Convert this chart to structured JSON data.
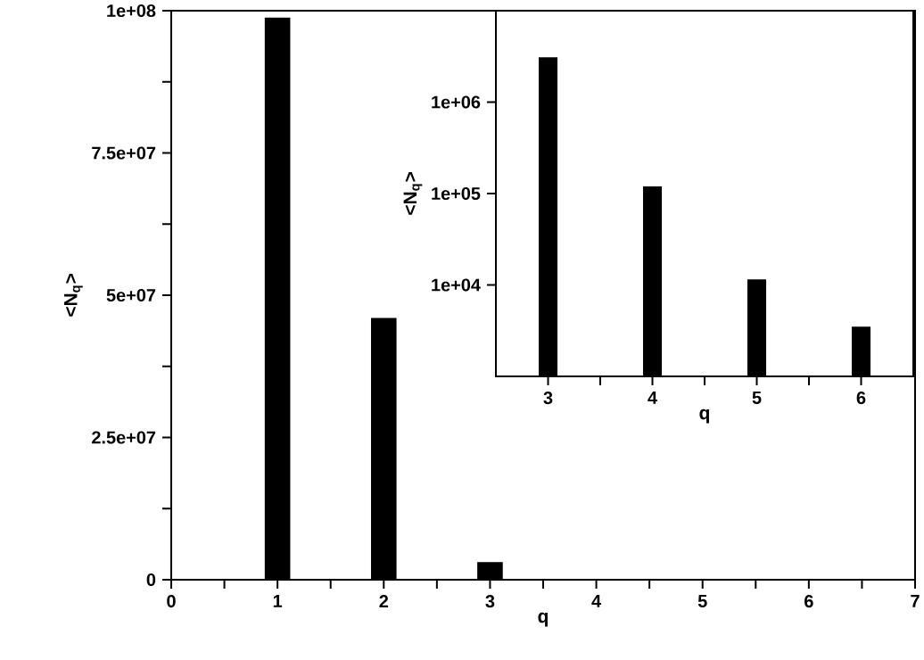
{
  "chart_data": [
    {
      "type": "bar",
      "xlabel": "q",
      "ylabel": "<N$_{q}$>",
      "color": "#000000",
      "x": [
        1,
        2,
        3,
        4,
        5,
        6
      ],
      "values": [
        98800000,
        46000000,
        3100000,
        120000,
        11500,
        3500
      ],
      "xlim": [
        0,
        7
      ],
      "ylim": [
        0,
        100000000
      ],
      "xticks": [
        0,
        {
          "value": 0.5,
          "label": null
        },
        1,
        {
          "value": 1.5,
          "label": null
        },
        2,
        {
          "value": 2.5,
          "label": null
        },
        3,
        {
          "value": 3.5,
          "label": null
        },
        4,
        {
          "value": 4.5,
          "label": null
        },
        5,
        {
          "value": 5.5,
          "label": null
        },
        6,
        {
          "value": 6.5,
          "label": null
        },
        7
      ],
      "yticks": [
        0,
        {
          "value": 12500000,
          "label": null
        },
        {
          "value": 25000000,
          "label": "2.5e+07"
        },
        {
          "value": 37500000,
          "label": null
        },
        {
          "value": 50000000,
          "label": "5e+07"
        },
        {
          "value": 62500000,
          "label": null
        },
        {
          "value": 75000000,
          "label": "7.5e+07"
        },
        {
          "value": 87500000,
          "label": null
        },
        {
          "value": 100000000,
          "label": "1e+08"
        }
      ]
    },
    {
      "type": "bar",
      "xlabel": "q",
      "ylabel": "<N$_{q}$>",
      "color": "#000000",
      "log": "y",
      "x": [
        3,
        4,
        5,
        6
      ],
      "values": [
        3100000,
        120000,
        11500,
        3500
      ],
      "xlim": [
        2.5,
        6.5
      ],
      "ylim": [
        1000,
        10000000
      ],
      "xticks": [
        3,
        {
          "value": 3.5,
          "label": null
        },
        4,
        {
          "value": 4.5,
          "label": null
        },
        5,
        {
          "value": 5.5,
          "label": null
        },
        6
      ],
      "yticks": [
        {
          "value": 10000,
          "label": "1e+04"
        },
        {
          "value": 100000,
          "label": "1e+05"
        },
        {
          "value": 1000000,
          "label": "1e+06"
        }
      ]
    }
  ]
}
